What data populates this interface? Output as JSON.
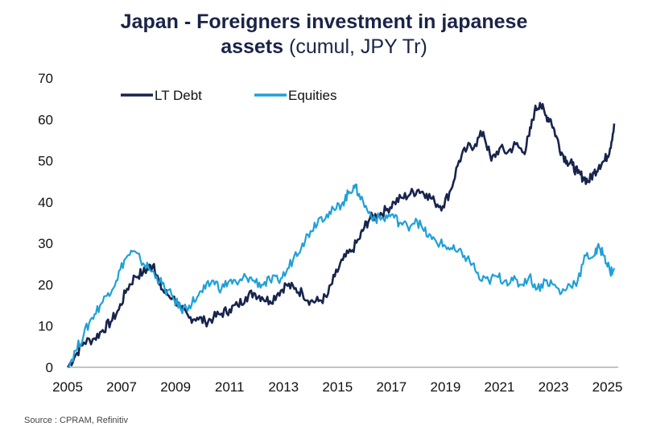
{
  "title": {
    "line1_bold": "Japan - Foreigners investment in japanese",
    "line2_bold": "assets",
    "line2_rest": " (cumul, JPY Tr)"
  },
  "source": "Source : CPRAM, Refinitiv",
  "colors": {
    "lt_debt": "#17244d",
    "equities": "#1fa0d8"
  },
  "chart_data": {
    "type": "line",
    "title": "Japan - Foreigners investment in japanese assets (cumul, JPY Tr)",
    "xlabel": "",
    "ylabel": "",
    "xlim": [
      2005,
      2025.4
    ],
    "ylim": [
      0,
      70
    ],
    "x_ticks": [
      "2005",
      "2007",
      "2009",
      "2011",
      "2013",
      "2015",
      "2017",
      "2019",
      "2021",
      "2023",
      "2025"
    ],
    "y_ticks": [
      "0",
      "10",
      "20",
      "30",
      "40",
      "50",
      "60",
      "70"
    ],
    "grid": false,
    "legend": "top-left",
    "series": [
      {
        "name": "LT Debt",
        "color": "#17244d",
        "x": [
          2005.0,
          2005.3,
          2005.6,
          2006.0,
          2006.3,
          2006.6,
          2006.9,
          2007.2,
          2007.5,
          2007.8,
          2008.0,
          2008.2,
          2008.4,
          2008.6,
          2008.9,
          2009.2,
          2009.5,
          2009.8,
          2010.1,
          2010.4,
          2010.7,
          2011.0,
          2011.3,
          2011.6,
          2011.9,
          2012.2,
          2012.5,
          2012.8,
          2013.1,
          2013.4,
          2013.7,
          2014.0,
          2014.3,
          2014.6,
          2014.9,
          2015.2,
          2015.5,
          2015.8,
          2016.0,
          2016.2,
          2016.5,
          2016.8,
          2017.1,
          2017.4,
          2017.7,
          2018.0,
          2018.3,
          2018.6,
          2018.9,
          2019.2,
          2019.5,
          2019.8,
          2020.1,
          2020.4,
          2020.7,
          2021.0,
          2021.3,
          2021.6,
          2021.9,
          2022.1,
          2022.3,
          2022.5,
          2022.7,
          2022.9,
          2023.1,
          2023.3,
          2023.5,
          2023.7,
          2023.9,
          2024.1,
          2024.3,
          2024.5,
          2024.7,
          2024.9,
          2025.1,
          2025.25
        ],
        "values": [
          0,
          3,
          6,
          7,
          9,
          11,
          14,
          19,
          22,
          23,
          24,
          25,
          20,
          18,
          17,
          14,
          12,
          12,
          11,
          12,
          13,
          14,
          15,
          17,
          18,
          17,
          16,
          18,
          20,
          19,
          18,
          16,
          16,
          17,
          22,
          26,
          28,
          31,
          34,
          36,
          37,
          38,
          40,
          41,
          42,
          43,
          42,
          40,
          39,
          43,
          50,
          53,
          54,
          57,
          50,
          53,
          52,
          54,
          52,
          56,
          62,
          64,
          61,
          60,
          56,
          52,
          50,
          49,
          47,
          46,
          45,
          47,
          49,
          50,
          53,
          59
        ]
      },
      {
        "name": "Equities",
        "color": "#1fa0d8",
        "x": [
          2005.0,
          2005.3,
          2005.6,
          2005.9,
          2006.2,
          2006.5,
          2006.8,
          2007.1,
          2007.4,
          2007.7,
          2008.0,
          2008.3,
          2008.6,
          2008.9,
          2009.2,
          2009.5,
          2009.8,
          2010.1,
          2010.4,
          2010.7,
          2011.0,
          2011.3,
          2011.6,
          2011.9,
          2012.2,
          2012.5,
          2012.8,
          2013.1,
          2013.4,
          2013.7,
          2014.0,
          2014.3,
          2014.6,
          2014.9,
          2015.2,
          2015.4,
          2015.6,
          2015.8,
          2016.1,
          2016.4,
          2016.7,
          2017.0,
          2017.3,
          2017.6,
          2017.9,
          2018.2,
          2018.5,
          2018.8,
          2019.1,
          2019.4,
          2019.7,
          2020.0,
          2020.3,
          2020.6,
          2020.9,
          2021.2,
          2021.5,
          2021.8,
          2022.1,
          2022.4,
          2022.7,
          2023.0,
          2023.3,
          2023.6,
          2023.9,
          2024.2,
          2024.5,
          2024.7,
          2024.9,
          2025.1,
          2025.25
        ],
        "values": [
          0,
          4,
          8,
          12,
          15,
          18,
          21,
          26,
          28,
          26,
          24,
          22,
          19,
          17,
          14,
          15,
          17,
          19,
          21,
          19,
          21,
          20,
          22,
          21,
          20,
          21,
          21,
          23,
          27,
          30,
          33,
          36,
          37,
          38,
          40,
          42,
          44,
          42,
          38,
          36,
          36,
          37,
          35,
          34,
          36,
          33,
          31,
          30,
          29,
          28,
          27,
          25,
          21,
          21,
          22,
          21,
          21,
          20,
          22,
          19,
          21,
          20,
          18,
          20,
          21,
          27,
          27,
          29,
          27,
          23,
          24
        ]
      }
    ]
  }
}
